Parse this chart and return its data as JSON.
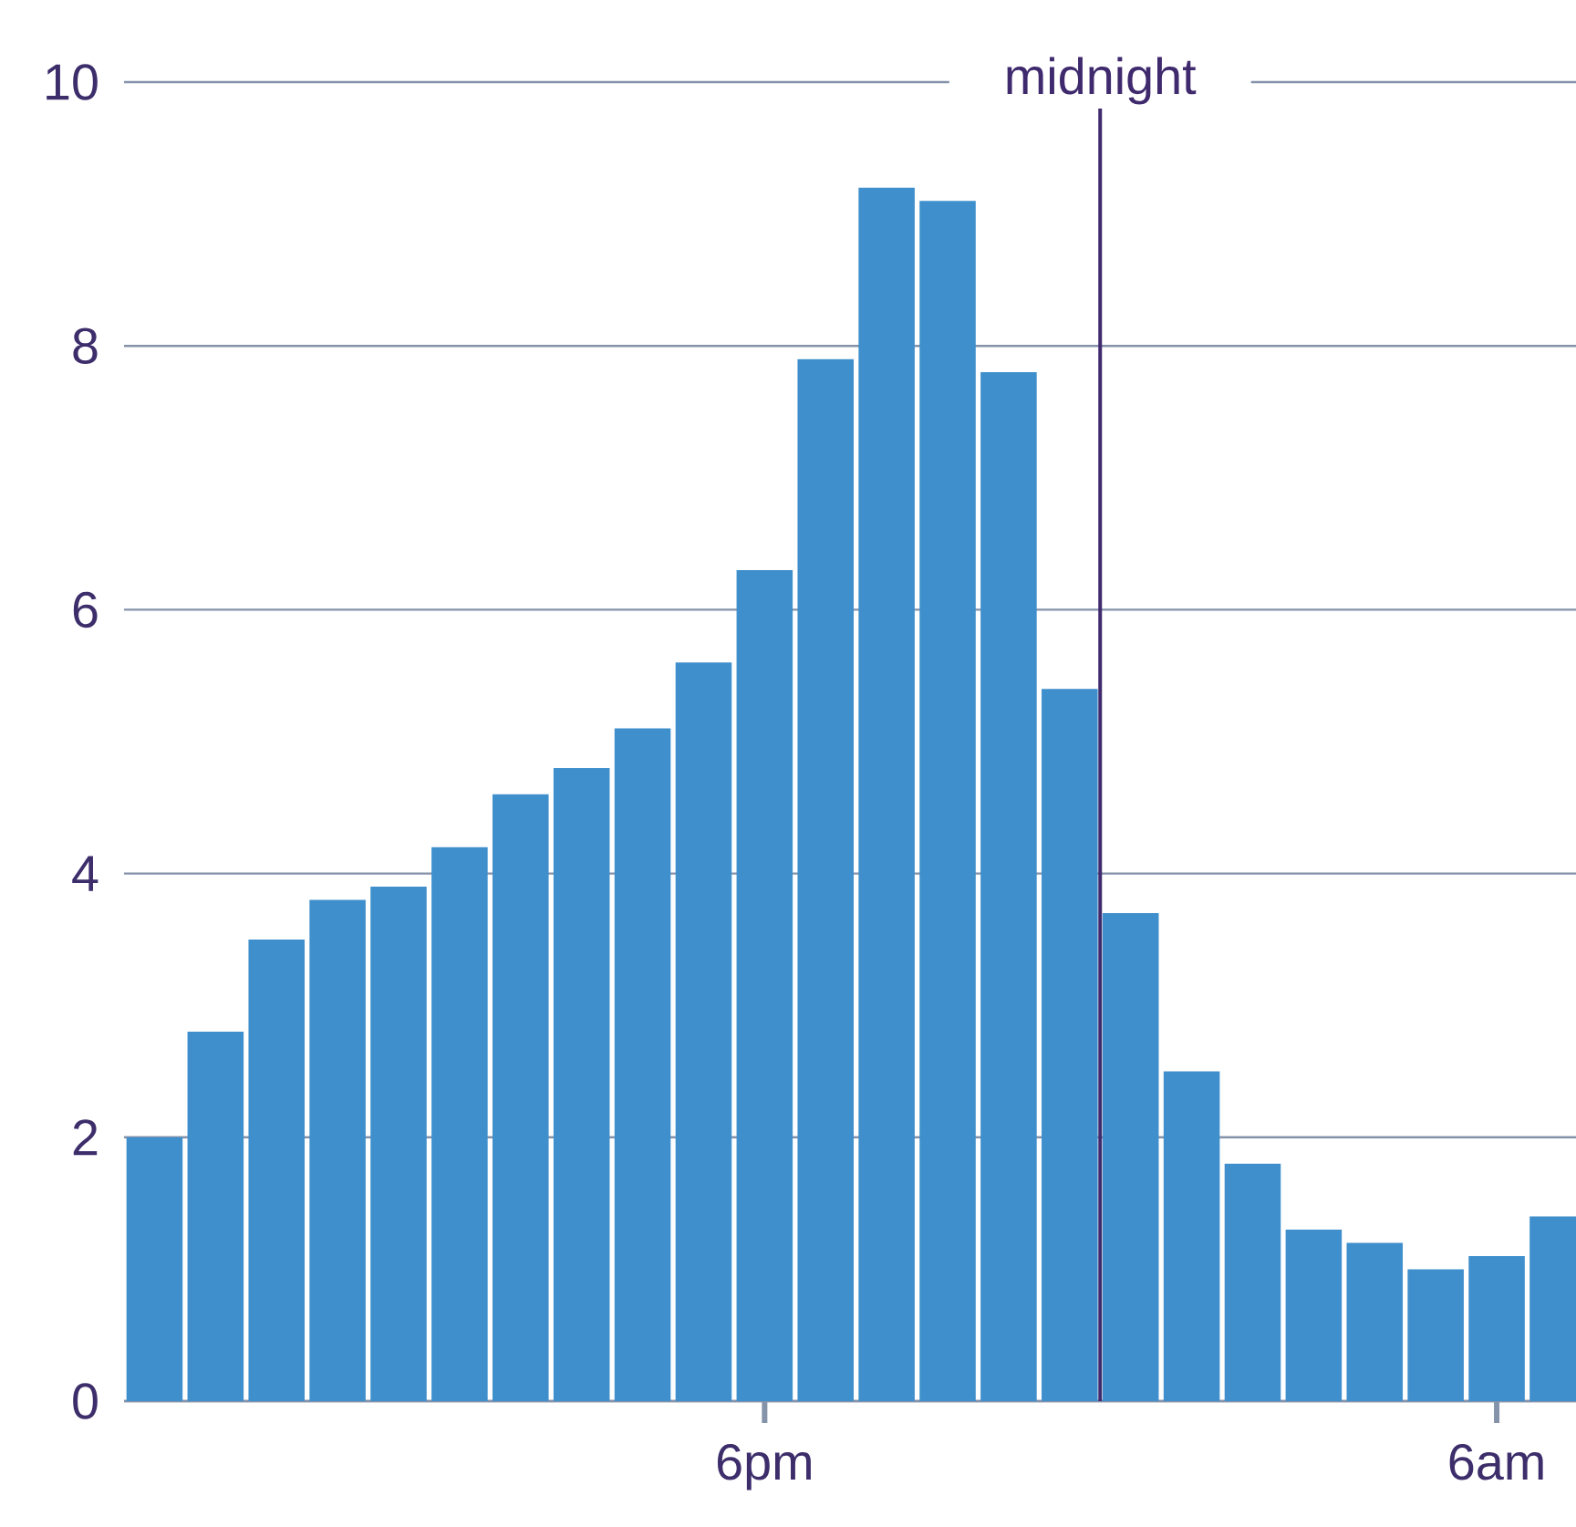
{
  "chart_data": {
    "type": "bar",
    "categories": [
      null,
      null,
      null,
      null,
      null,
      null,
      null,
      null,
      null,
      null,
      "6pm",
      null,
      null,
      null,
      null,
      null,
      null,
      null,
      null,
      null,
      null,
      null,
      "6am",
      null
    ],
    "values": [
      2.0,
      2.8,
      3.5,
      3.8,
      3.9,
      4.2,
      4.6,
      4.8,
      5.1,
      5.6,
      6.3,
      7.9,
      9.2,
      9.1,
      7.8,
      5.4,
      3.7,
      2.5,
      1.8,
      1.3,
      1.2,
      1.0,
      1.1,
      1.4
    ],
    "color": "#3f8fcc",
    "ylim": [
      0,
      10
    ],
    "yticks": [
      0,
      2,
      4,
      6,
      8,
      10
    ],
    "grid": "y",
    "annotations": [
      "midnight"
    ]
  }
}
